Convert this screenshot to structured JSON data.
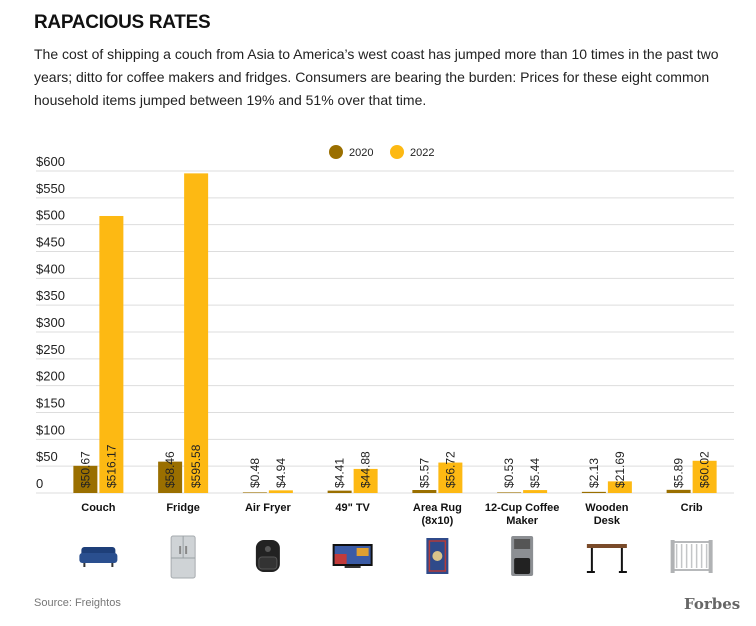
{
  "title": "RAPACIOUS RATES",
  "subtitle": "The cost of shipping a couch from Asia to America’s west coast has jumped more than 10 times in the past two years; ditto for coffee makers and fridges. Consumers are bearing the burden: Prices for these eight common household items jumped between 19% and 51% over that time.",
  "source": "Source: Freightos",
  "brand": "Forbes",
  "colors": {
    "series_2020": "#9a6f00",
    "series_2022": "#fdb913",
    "grid": "#dddddd"
  },
  "chart_data": {
    "type": "bar",
    "categories": [
      "Couch",
      "Fridge",
      "Air Fryer",
      "49\" TV",
      "Area Rug (8x10)",
      "12-Cup Coffee Maker",
      "Wooden Desk",
      "Crib"
    ],
    "category_lines": [
      [
        "Couch"
      ],
      [
        "Fridge"
      ],
      [
        "Air Fryer"
      ],
      [
        "49\" TV"
      ],
      [
        "Area Rug",
        "(8x10)"
      ],
      [
        "12-Cup Coffee",
        "Maker"
      ],
      [
        "Wooden",
        "Desk"
      ],
      [
        "Crib"
      ]
    ],
    "category_icons": [
      "sofa-icon",
      "fridge-icon",
      "air-fryer-icon",
      "television-icon",
      "rug-icon",
      "coffee-maker-icon",
      "desk-icon",
      "crib-icon"
    ],
    "series": [
      {
        "name": "2020",
        "values": [
          50.67,
          58.46,
          0.48,
          4.41,
          5.57,
          0.53,
          2.13,
          5.89
        ],
        "labels": [
          "$50.67",
          "$58.46",
          "$0.48",
          "$4.41",
          "$5.57",
          "$0.53",
          "$2.13",
          "$5.89"
        ]
      },
      {
        "name": "2022",
        "values": [
          516.17,
          595.58,
          4.94,
          44.88,
          56.72,
          5.44,
          21.69,
          60.02
        ],
        "labels": [
          "$516.17",
          "$595.58",
          "$4.94",
          "$44.88",
          "$56.72",
          "$5.44",
          "$21.69",
          "$60.02"
        ]
      }
    ],
    "yticks": [
      0,
      50,
      100,
      150,
      200,
      250,
      300,
      350,
      400,
      450,
      500,
      550,
      600
    ],
    "ytick_labels": [
      "0",
      "$50",
      "$100",
      "$150",
      "$200",
      "$250",
      "$300",
      "$350",
      "$400",
      "$450",
      "$500",
      "$550",
      "$600"
    ],
    "ylim": [
      0,
      600
    ],
    "xlabel": "",
    "ylabel": "",
    "grid": true,
    "legend": "top-center"
  }
}
